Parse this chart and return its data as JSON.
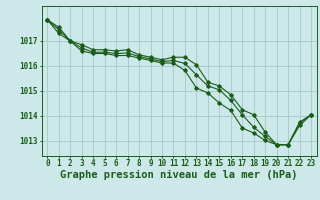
{
  "title": "Graphe pression niveau de la mer (hPa)",
  "background_color": "#cce8e8",
  "grid_color": "#aacccc",
  "line_color": "#1a5c1a",
  "hours": [
    0,
    1,
    2,
    3,
    4,
    5,
    6,
    7,
    8,
    9,
    10,
    11,
    12,
    13,
    14,
    15,
    16,
    17,
    18,
    19,
    20,
    21,
    22,
    23
  ],
  "series1": [
    1017.85,
    1017.55,
    1017.0,
    1016.85,
    1016.65,
    1016.65,
    1016.6,
    1016.65,
    1016.45,
    1016.35,
    1016.25,
    1016.35,
    1016.35,
    1016.05,
    1015.35,
    1015.2,
    1014.85,
    1014.25,
    1014.05,
    1013.35,
    1012.85,
    1012.85,
    1013.75,
    1014.05
  ],
  "series2": [
    1017.85,
    1017.45,
    1017.0,
    1016.72,
    1016.55,
    1016.55,
    1016.5,
    1016.52,
    1016.38,
    1016.28,
    1016.18,
    1016.22,
    1016.1,
    1015.65,
    1015.2,
    1015.05,
    1014.62,
    1014.05,
    1013.55,
    1013.18,
    1012.85,
    1012.85,
    1013.72,
    1014.05
  ],
  "series3": [
    1017.85,
    1017.3,
    1017.0,
    1016.6,
    1016.5,
    1016.5,
    1016.42,
    1016.42,
    1016.32,
    1016.22,
    1016.12,
    1016.12,
    1015.82,
    1015.12,
    1014.92,
    1014.52,
    1014.22,
    1013.52,
    1013.32,
    1013.02,
    1012.85,
    1012.85,
    1013.62,
    1014.05
  ],
  "ylim_min": 1012.4,
  "ylim_max": 1018.4,
  "yticks": [
    1013,
    1014,
    1015,
    1016,
    1017
  ],
  "x_labels": [
    "0",
    "1",
    "2",
    "3",
    "4",
    "5",
    "6",
    "7",
    "8",
    "9",
    "10",
    "11",
    "12",
    "13",
    "14",
    "15",
    "16",
    "17",
    "18",
    "19",
    "20",
    "21",
    "22",
    "23"
  ],
  "tick_fontsize": 5.5,
  "title_fontsize": 7.5
}
